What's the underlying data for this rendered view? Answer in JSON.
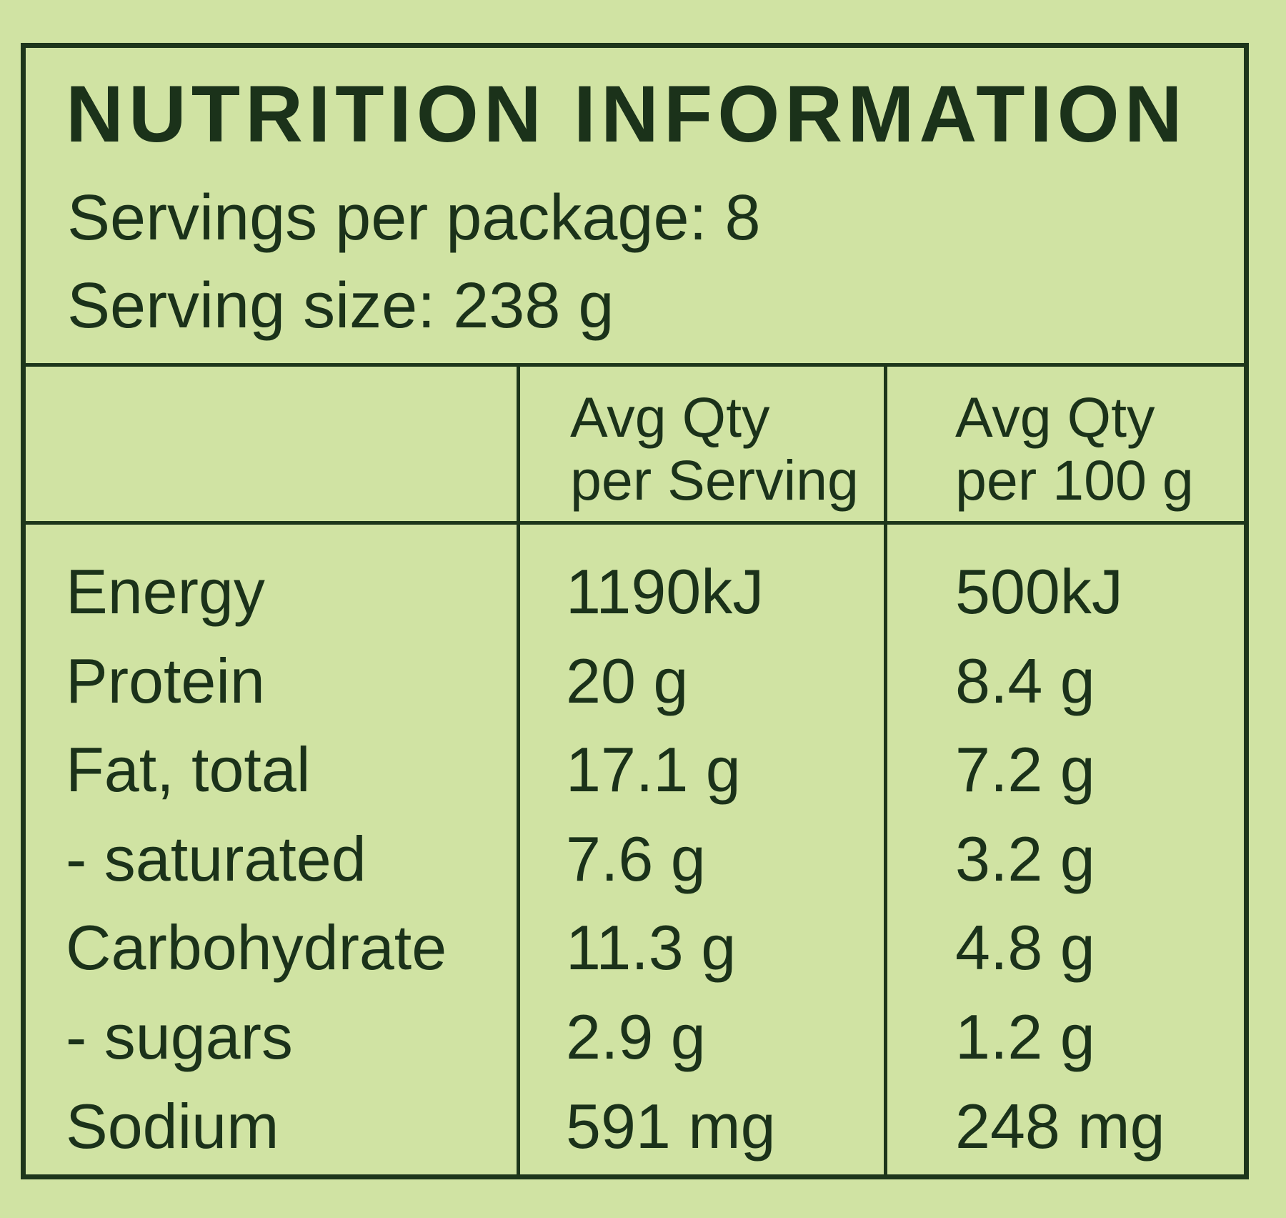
{
  "title": "NUTRITION INFORMATION",
  "servings_per_package": "Servings per package: 8",
  "serving_size": "Serving size: 238 g",
  "columns": {
    "per_serving": [
      "Avg Qty",
      "per Serving"
    ],
    "per_100g": [
      "Avg Qty",
      "per 100 g"
    ]
  },
  "rows": [
    {
      "name": "Energy",
      "per_serving": "1190kJ",
      "per_100g": "500kJ"
    },
    {
      "name": "Protein",
      "per_serving": "20 g",
      "per_100g": "8.4 g"
    },
    {
      "name": "Fat, total",
      "per_serving": "17.1 g",
      "per_100g": "7.2 g"
    },
    {
      "name": "- saturated",
      "per_serving": "7.6 g",
      "per_100g": "3.2 g"
    },
    {
      "name": "Carbohydrate",
      "per_serving": "11.3 g",
      "per_100g": "4.8 g"
    },
    {
      "name": "- sugars",
      "per_serving": "2.9 g",
      "per_100g": "1.2 g"
    },
    {
      "name": "Sodium",
      "per_serving": "591 mg",
      "per_100g": "248 mg"
    }
  ],
  "colors": {
    "background": "#d0e3a3",
    "text": "#1b321a",
    "border": "#1d361b"
  }
}
